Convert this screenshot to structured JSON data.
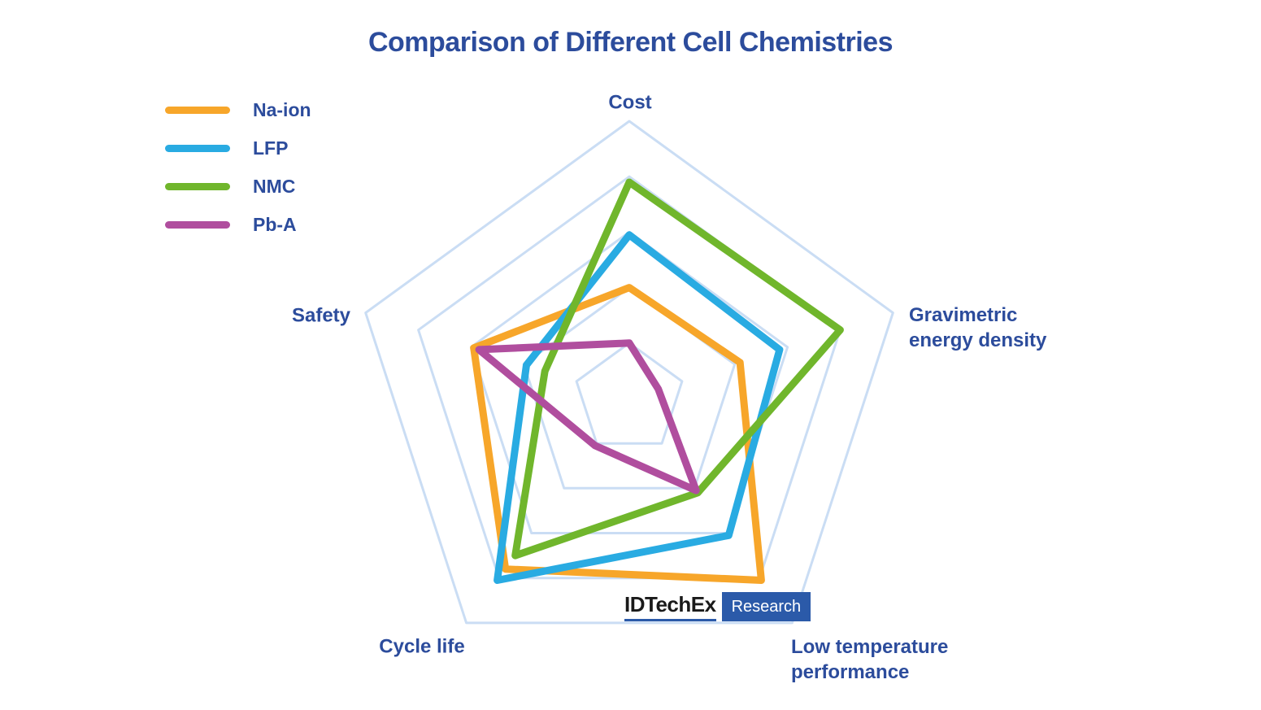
{
  "chart_data": {
    "type": "radar",
    "title": "Comparison of Different Cell Chemistries",
    "axes": [
      "Cost",
      "Gravimetric energy density",
      "Low temperature performance",
      "Cycle life",
      "Safety"
    ],
    "scale": {
      "min": 0,
      "max": 5,
      "grid_rings": 5
    },
    "grid_color": "#caddf4",
    "grid_shape": "pentagon",
    "legend_position": "top-left",
    "series": [
      {
        "name": "Na-ion",
        "color": "#f7a62a",
        "values": [
          2.0,
          2.1,
          4.05,
          3.8,
          2.95
        ]
      },
      {
        "name": "LFP",
        "color": "#29abe2",
        "values": [
          2.95,
          2.85,
          3.05,
          4.05,
          1.95
        ]
      },
      {
        "name": "NMC",
        "color": "#70b62c",
        "values": [
          3.9,
          4.0,
          2.1,
          3.5,
          1.6
        ]
      },
      {
        "name": "Pb-A",
        "color": "#b04e9e",
        "values": [
          1.0,
          0.55,
          2.05,
          1.05,
          2.85
        ]
      }
    ]
  },
  "logo": {
    "brand": "IDTechEx",
    "research": "Research"
  }
}
